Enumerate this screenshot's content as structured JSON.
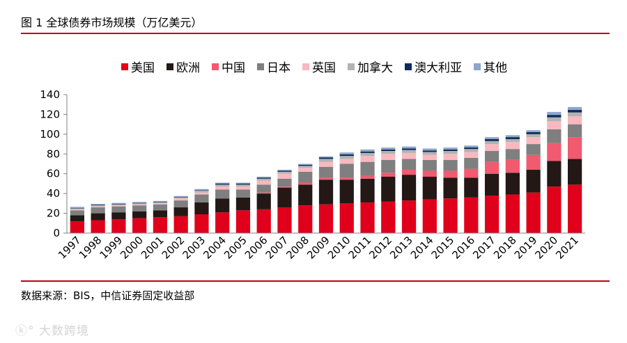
{
  "figure_title": "图 1  全球债券市场规模（万亿美元）",
  "source_note": "数据来源：BIS，中信证券固定收益部",
  "watermark_text": "大数跨境",
  "chart_data": {
    "type": "bar",
    "stacked": true,
    "title": "图 1  全球债券市场规模（万亿美元）",
    "unit": "万亿美元",
    "ylim": [
      0,
      140
    ],
    "yticks": [
      "0",
      "20",
      "40",
      "60",
      "80",
      "100",
      "120",
      "140"
    ],
    "legend_position": "top",
    "categories": [
      "1997",
      "1998",
      "1999",
      "2000",
      "2001",
      "2002",
      "2003",
      "2004",
      "2005",
      "2006",
      "2007",
      "2008",
      "2009",
      "2010",
      "2011",
      "2012",
      "2013",
      "2014",
      "2015",
      "2016",
      "2017",
      "2018",
      "2019",
      "2020",
      "2021"
    ],
    "series": [
      {
        "name": "美国",
        "color": "#e0001b",
        "values": [
          12,
          13,
          14,
          15,
          16,
          17,
          19,
          21,
          23,
          24,
          26,
          28,
          29,
          30,
          31,
          32,
          33,
          34,
          35,
          36,
          38,
          39,
          41,
          47,
          49
        ]
      },
      {
        "name": "欧洲",
        "color": "#231815",
        "values": [
          6,
          7,
          7,
          7,
          7,
          9,
          12,
          14,
          13,
          16,
          20,
          21,
          25,
          24,
          24,
          25,
          26,
          23,
          21,
          20,
          22,
          22,
          23,
          26,
          26
        ]
      },
      {
        "name": "中国",
        "color": "#f15a6f",
        "values": [
          0,
          0,
          0,
          0,
          0,
          0,
          0,
          0,
          0,
          1,
          1,
          2,
          2,
          2,
          3,
          4,
          5,
          6,
          7,
          9,
          12,
          13,
          15,
          18,
          22
        ]
      },
      {
        "name": "日本",
        "color": "#7f7f7f",
        "values": [
          5,
          6,
          6,
          6,
          6,
          7,
          8,
          9,
          8,
          8,
          8,
          11,
          11,
          14,
          14,
          13,
          11,
          11,
          11,
          11,
          11,
          11,
          11,
          14,
          13
        ]
      },
      {
        "name": "英国",
        "color": "#f9b8bf",
        "values": [
          1,
          1,
          1,
          1,
          1,
          2,
          2,
          3,
          3,
          4,
          5,
          4,
          5,
          5,
          6,
          6,
          6,
          5,
          6,
          6,
          7,
          7,
          7,
          8,
          8
        ]
      },
      {
        "name": "加拿大",
        "color": "#b3b3b3",
        "values": [
          1,
          1,
          1,
          1,
          1,
          1,
          2,
          2,
          2,
          2,
          2,
          2,
          3,
          3,
          3,
          3,
          3,
          3,
          3,
          3,
          3,
          3,
          3,
          4,
          4
        ]
      },
      {
        "name": "澳大利亚",
        "color": "#0d2b5c",
        "values": [
          0.5,
          0.5,
          0.5,
          0.5,
          0.5,
          0.5,
          0.5,
          1,
          1,
          1,
          1,
          1,
          1.5,
          1.5,
          1.5,
          1.5,
          1.5,
          1.5,
          1.5,
          1.5,
          2,
          2,
          2,
          2.5,
          2.5
        ]
      },
      {
        "name": "其他",
        "color": "#8ea6c9",
        "values": [
          1,
          1,
          1,
          1,
          1,
          1,
          1,
          1,
          1,
          1,
          1,
          1,
          1,
          2,
          2,
          2,
          2,
          2,
          2,
          2,
          2,
          2,
          2,
          3,
          3
        ]
      }
    ]
  }
}
